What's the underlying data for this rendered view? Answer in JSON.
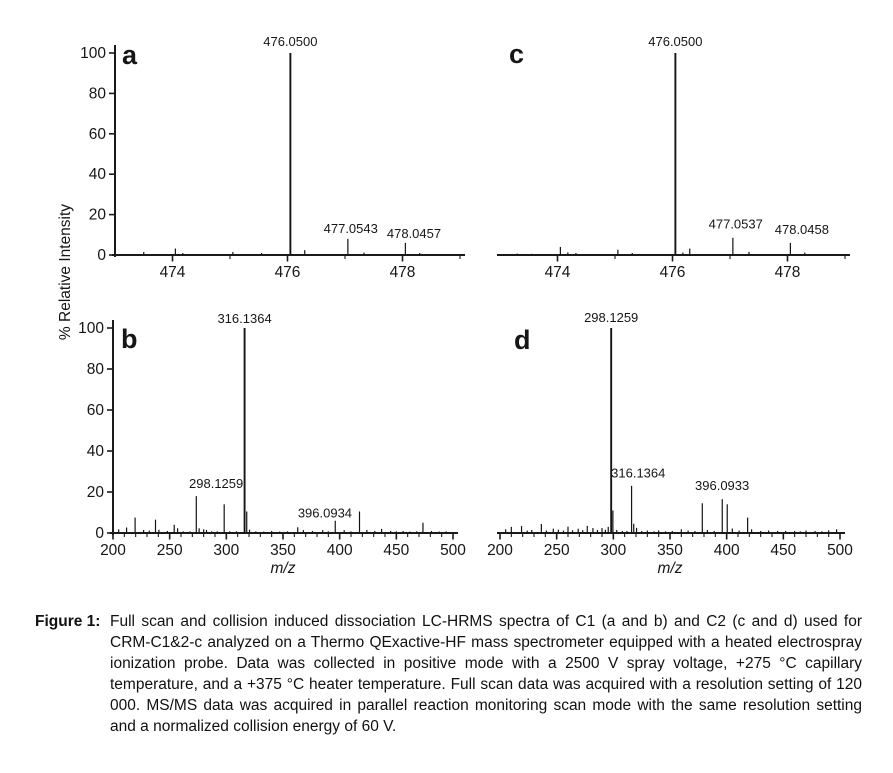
{
  "figure": {
    "y_axis_label": "% Relative Intensity"
  },
  "caption": {
    "label": "Figure 1:",
    "text": "Full scan and collision induced dissociation LC-HRMS spectra of C1 (a and b) and C2 (c and d) used for CRM-C1&2-c analyzed on a Thermo QExactive-HF mass spectrometer equipped with a heated electrospray ionization probe. Data was collected in positive mode with a 2500 V spray voltage, +275 °C capillary temperature, and a +375 °C heater temperature. Full scan data was acquired with a resolution setting of 120 000. MS/MS data was acquired in parallel reaction monitoring scan mode with the same resolution setting and a normalized collision energy of 60 V.",
    "text_color": "#111111"
  },
  "chart_data": [
    {
      "id": "a",
      "panel_label": "a",
      "type": "bar",
      "title": "",
      "xlabel": "",
      "ylabel": "% Relative Intensity",
      "xlim": [
        473,
        479
      ],
      "ylim": [
        0,
        105
      ],
      "x_major_ticks": [
        474,
        476,
        478
      ],
      "x_minor_step": 1,
      "y_ticks": [
        0,
        20,
        40,
        60,
        80,
        100
      ],
      "show_y_axis": true,
      "grid": false,
      "peaks": [
        [
          473.5,
          1.5
        ],
        [
          474.05,
          3.2
        ],
        [
          474.18,
          1
        ],
        [
          475.05,
          1.5
        ],
        [
          475.55,
          1
        ],
        [
          476.05,
          100
        ],
        [
          476.3,
          2.4
        ],
        [
          477.05,
          8
        ],
        [
          477.33,
          1.2
        ],
        [
          478.05,
          6
        ],
        [
          478.3,
          1
        ]
      ],
      "peak_labels": [
        {
          "text": "476.0500",
          "x": 476.05,
          "y": 103.5
        },
        {
          "text": "477.0543",
          "x": 477.1,
          "y": 11
        },
        {
          "text": "478.0457",
          "x": 478.2,
          "y": 8.5
        }
      ]
    },
    {
      "id": "c",
      "panel_label": "c",
      "type": "bar",
      "title": "",
      "xlabel": "",
      "ylabel": "% Relative Intensity",
      "xlim": [
        473,
        479
      ],
      "ylim": [
        0,
        105
      ],
      "x_major_ticks": [
        474,
        476,
        478
      ],
      "x_minor_step": 1,
      "y_ticks": [
        0,
        20,
        40,
        60,
        80,
        100
      ],
      "show_y_axis": false,
      "grid": false,
      "peaks": [
        [
          473.3,
          0.7
        ],
        [
          473.55,
          0.6
        ],
        [
          474.05,
          4
        ],
        [
          474.18,
          1.3
        ],
        [
          474.32,
          1
        ],
        [
          475.05,
          2.6
        ],
        [
          475.3,
          1
        ],
        [
          476.05,
          100
        ],
        [
          476.18,
          1.2
        ],
        [
          476.3,
          3.2
        ],
        [
          477.05,
          8.5
        ],
        [
          477.33,
          1.6
        ],
        [
          478.05,
          6
        ],
        [
          478.3,
          1.2
        ]
      ],
      "peak_labels": [
        {
          "text": "476.0500",
          "x": 476.05,
          "y": 103.5
        },
        {
          "text": "477.0537",
          "x": 477.1,
          "y": 13
        },
        {
          "text": "478.0458",
          "x": 478.25,
          "y": 10.5
        }
      ]
    },
    {
      "id": "b",
      "panel_label": "b",
      "type": "bar",
      "title": "",
      "xlabel": "m/z",
      "ylabel": "% Relative Intensity",
      "xlim": [
        200,
        500
      ],
      "ylim": [
        0,
        105
      ],
      "x_major_ticks": [
        200,
        250,
        300,
        350,
        400,
        450,
        500
      ],
      "x_minor_step": 10,
      "y_ticks": [
        0,
        20,
        40,
        60,
        80,
        100
      ],
      "show_y_axis": true,
      "grid": false,
      "peaks": [
        [
          205,
          1.8
        ],
        [
          212,
          2.7
        ],
        [
          219.5,
          7.5
        ],
        [
          227,
          1.5
        ],
        [
          232,
          1.2
        ],
        [
          237.5,
          6.5
        ],
        [
          240.5,
          1.6
        ],
        [
          248,
          1
        ],
        [
          254,
          4
        ],
        [
          257,
          2.3
        ],
        [
          262,
          0.8
        ],
        [
          268,
          0.8
        ],
        [
          273.5,
          18
        ],
        [
          276,
          2.3
        ],
        [
          280,
          1.8
        ],
        [
          282.5,
          1.5
        ],
        [
          287,
          0.8
        ],
        [
          292,
          0.8
        ],
        [
          298.1,
          14
        ],
        [
          303,
          0.8
        ],
        [
          309,
          0.8
        ],
        [
          316.1,
          100
        ],
        [
          318,
          10.5
        ],
        [
          320.5,
          1.6
        ],
        [
          326,
          0.8
        ],
        [
          333,
          0.7
        ],
        [
          340,
          1
        ],
        [
          347,
          0.7
        ],
        [
          354,
          0.8
        ],
        [
          363,
          2.8
        ],
        [
          368,
          1.4
        ],
        [
          376,
          1
        ],
        [
          385,
          1.4
        ],
        [
          390,
          0.8
        ],
        [
          396.1,
          6
        ],
        [
          404,
          1.4
        ],
        [
          410,
          0.8
        ],
        [
          417.5,
          10.5
        ],
        [
          424,
          1.5
        ],
        [
          431,
          1
        ],
        [
          437,
          2
        ],
        [
          445,
          1
        ],
        [
          450,
          0.8
        ],
        [
          456,
          1
        ],
        [
          462,
          0.7
        ],
        [
          468,
          0.8
        ],
        [
          473.5,
          5
        ],
        [
          481,
          1
        ],
        [
          488,
          0.7
        ],
        [
          494,
          0.8
        ]
      ],
      "peak_labels": [
        {
          "text": "316.1364",
          "x": 316.1,
          "y": 102.5
        },
        {
          "text": "298.1259",
          "x": 291,
          "y": 22
        },
        {
          "text": "396.0934",
          "x": 387,
          "y": 7.5
        }
      ]
    },
    {
      "id": "d",
      "panel_label": "d",
      "type": "bar",
      "title": "",
      "xlabel": "m/z",
      "ylabel": "% Relative Intensity",
      "xlim": [
        200,
        500
      ],
      "ylim": [
        0,
        105
      ],
      "x_major_ticks": [
        200,
        250,
        300,
        350,
        400,
        450,
        500
      ],
      "x_minor_step": 10,
      "y_ticks": [
        0,
        20,
        40,
        60,
        80,
        100
      ],
      "show_y_axis": false,
      "grid": false,
      "peaks": [
        [
          205,
          1.8
        ],
        [
          210,
          3
        ],
        [
          219,
          3.4
        ],
        [
          224,
          1.2
        ],
        [
          228,
          1.5
        ],
        [
          236.5,
          4.4
        ],
        [
          241,
          1.2
        ],
        [
          247,
          2.1
        ],
        [
          251.5,
          1.6
        ],
        [
          256,
          1.2
        ],
        [
          260,
          3.1
        ],
        [
          264,
          1.3
        ],
        [
          269,
          2.1
        ],
        [
          273,
          1.4
        ],
        [
          277,
          3.5
        ],
        [
          282,
          2.4
        ],
        [
          286,
          1.5
        ],
        [
          290,
          2.4
        ],
        [
          293,
          1.6
        ],
        [
          295.5,
          3
        ],
        [
          298.1,
          100
        ],
        [
          299.6,
          11
        ],
        [
          303,
          1.5
        ],
        [
          308,
          1
        ],
        [
          312,
          1
        ],
        [
          316.1,
          23
        ],
        [
          318,
          4.5
        ],
        [
          320.5,
          2.5
        ],
        [
          325,
          1
        ],
        [
          330,
          1.2
        ],
        [
          336,
          0.8
        ],
        [
          340,
          1.2
        ],
        [
          346,
          0.8
        ],
        [
          352,
          1
        ],
        [
          360,
          1.8
        ],
        [
          366,
          1.2
        ],
        [
          372,
          1
        ],
        [
          378.5,
          14.5
        ],
        [
          383,
          1.5
        ],
        [
          389,
          1
        ],
        [
          396.1,
          16.5
        ],
        [
          400.5,
          14
        ],
        [
          405,
          2.2
        ],
        [
          411,
          1.2
        ],
        [
          418.5,
          7.5
        ],
        [
          422,
          1.8
        ],
        [
          430,
          1
        ],
        [
          437,
          1.2
        ],
        [
          445,
          1
        ],
        [
          452,
          1
        ],
        [
          460,
          1
        ],
        [
          465,
          0.8
        ],
        [
          470,
          1.2
        ],
        [
          478,
          1
        ],
        [
          484,
          0.8
        ],
        [
          490,
          1.3
        ],
        [
          497,
          1.8
        ]
      ],
      "peak_labels": [
        {
          "text": "298.1259",
          "x": 298.1,
          "y": 103
        },
        {
          "text": "316.1364",
          "x": 322,
          "y": 27
        },
        {
          "text": "396.0933",
          "x": 396,
          "y": 21
        }
      ]
    }
  ]
}
